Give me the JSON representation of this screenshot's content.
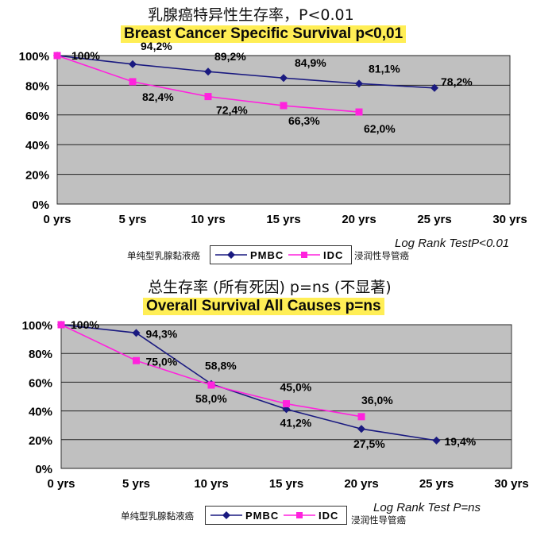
{
  "chart_data": [
    {
      "type": "line",
      "title_cn": "乳腺癌特异性生存率，P<0.01",
      "title": "Breast Cancer Specific Survival p<0,01",
      "categories": [
        "0 yrs",
        "5 yrs",
        "10 yrs",
        "15 yrs",
        "20 yrs",
        "25 yrs",
        "30 yrs"
      ],
      "x": [
        0,
        5,
        10,
        15,
        20,
        25,
        30
      ],
      "y_ticks": [
        "0%",
        "20%",
        "40%",
        "60%",
        "80%",
        "100%"
      ],
      "ylim": [
        0,
        100
      ],
      "grid": true,
      "series": [
        {
          "name": "PMBC",
          "color": "#1a1a80",
          "marker": "diamond",
          "x": [
            0,
            5,
            10,
            15,
            20,
            25
          ],
          "values": [
            100,
            94.2,
            89.2,
            84.9,
            81.1,
            78.2
          ],
          "labels": [
            "100%",
            "94,2%",
            "89,2%",
            "84,9%",
            "81,1%",
            "78,2%"
          ]
        },
        {
          "name": "IDC",
          "color": "#ff22dd",
          "marker": "square",
          "x": [
            0,
            5,
            10,
            15,
            20
          ],
          "values": [
            100,
            82.4,
            72.4,
            66.3,
            62.0
          ],
          "labels": [
            "",
            "82,4%",
            "72,4%",
            "66,3%",
            "62,0%"
          ]
        }
      ],
      "legend": {
        "left_label": "单纯型乳腺黏液癌",
        "right_label": "浸润性导管癌",
        "placement": "bottom"
      },
      "note": "Log Rank TestP<0.01"
    },
    {
      "type": "line",
      "title_cn": "总生存率 (所有死因) p=ns (不显著)",
      "title": "Overall Survival All Causes p=ns",
      "categories": [
        "0 yrs",
        "5 yrs",
        "10 yrs",
        "15 yrs",
        "20 yrs",
        "25 yrs",
        "30 yrs"
      ],
      "x": [
        0,
        5,
        10,
        15,
        20,
        25,
        30
      ],
      "y_ticks": [
        "0%",
        "20%",
        "40%",
        "60%",
        "80%",
        "100%"
      ],
      "ylim": [
        0,
        100
      ],
      "grid": true,
      "series": [
        {
          "name": "PMBC",
          "color": "#1a1a80",
          "marker": "diamond",
          "x": [
            0,
            5,
            10,
            15,
            20,
            25
          ],
          "values": [
            100,
            94.3,
            58.8,
            41.2,
            27.5,
            19.4
          ],
          "labels": [
            "100%",
            "94,3%",
            "58,8%",
            "41,2%",
            "27,5%",
            "19,4%"
          ]
        },
        {
          "name": "IDC",
          "color": "#ff22dd",
          "marker": "square",
          "x": [
            0,
            5,
            10,
            15,
            20
          ],
          "values": [
            100,
            75.0,
            58.0,
            45.0,
            36.0
          ],
          "labels": [
            "",
            "75,0%",
            "58,0%",
            "45,0%",
            "36,0%"
          ]
        }
      ],
      "legend": {
        "left_label": "单纯型乳腺黏液癌",
        "right_label": "浸润性导管癌",
        "placement": "bottom"
      },
      "note": "Log Rank Test P=ns"
    }
  ]
}
